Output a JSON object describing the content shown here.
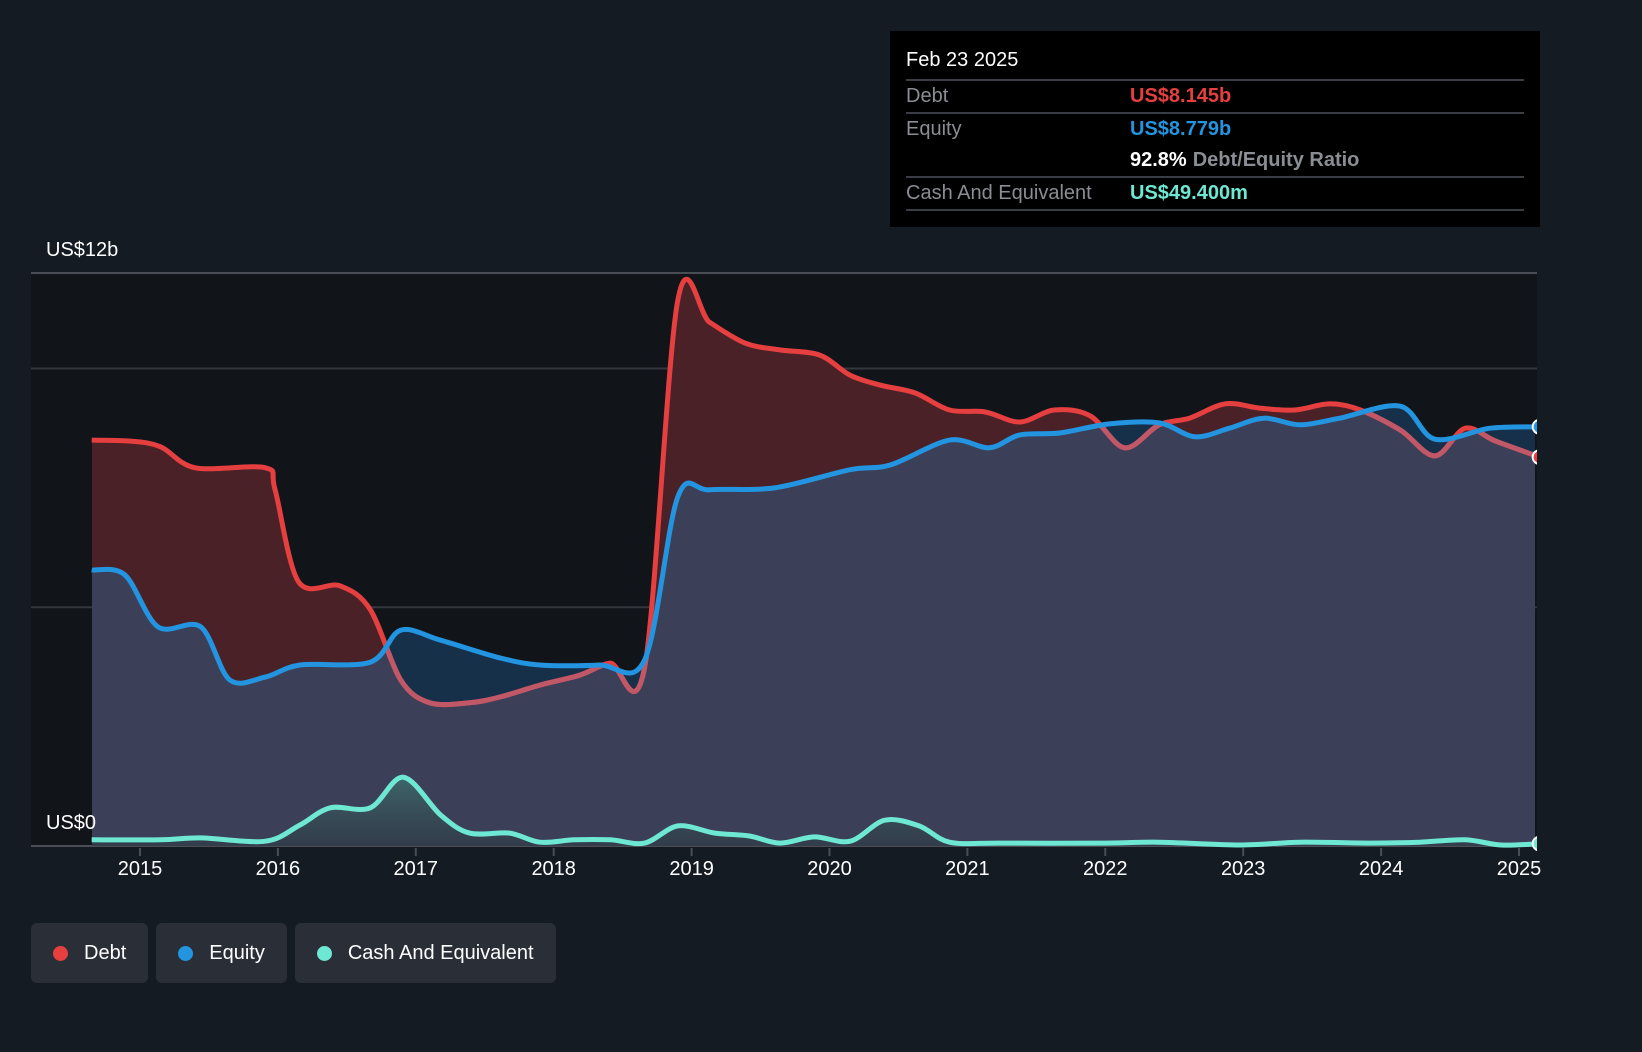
{
  "tooltip": {
    "date": "Feb 23 2025",
    "debt_label": "Debt",
    "debt_value": "US$8.145b",
    "equity_label": "Equity",
    "equity_value": "US$8.779b",
    "ratio_value": "92.8%",
    "ratio_label": "Debt/Equity Ratio",
    "cash_label": "Cash And Equivalent",
    "cash_value": "US$49.400m"
  },
  "colors": {
    "debt": "#e5403f",
    "equity": "#2394df",
    "cash": "#6ee7d3",
    "background": "#151b23"
  },
  "legend": [
    {
      "label": "Debt",
      "color": "#e5403f"
    },
    {
      "label": "Equity",
      "color": "#2394df"
    },
    {
      "label": "Cash And Equivalent",
      "color": "#6ee7d3"
    }
  ],
  "chart_data": {
    "type": "area",
    "title": "",
    "xlabel": "",
    "ylabel": "",
    "ylim": [
      0,
      12
    ],
    "xlim": [
      2014.65,
      2025.15
    ],
    "y_unit": "US$ billions",
    "y_tick_labels": [
      {
        "value": 12,
        "label": "US$12b"
      },
      {
        "value": 0,
        "label": "US$0"
      }
    ],
    "gridlines": [
      0,
      5,
      10,
      12
    ],
    "x_ticks": [
      2015,
      2016,
      2017,
      2018,
      2019,
      2020,
      2021,
      2022,
      2023,
      2024,
      2025
    ],
    "x_tick_labels": [
      "2015",
      "2016",
      "2017",
      "2018",
      "2019",
      "2020",
      "2021",
      "2022",
      "2023",
      "2024",
      "2025"
    ],
    "legend_position": "bottom-left",
    "series": [
      {
        "name": "Debt",
        "points": [
          [
            2014.65,
            8.5
          ],
          [
            2014.93,
            8.48
          ],
          [
            2015.15,
            8.36
          ],
          [
            2015.4,
            7.92
          ],
          [
            2015.91,
            7.92
          ],
          [
            2015.98,
            7.46
          ],
          [
            2016.15,
            5.53
          ],
          [
            2016.45,
            5.45
          ],
          [
            2016.67,
            4.95
          ],
          [
            2016.89,
            3.48
          ],
          [
            2017.1,
            3.0
          ],
          [
            2017.39,
            3.0
          ],
          [
            2017.61,
            3.12
          ],
          [
            2017.9,
            3.37
          ],
          [
            2018.19,
            3.58
          ],
          [
            2018.41,
            3.83
          ],
          [
            2018.66,
            3.75
          ],
          [
            2018.9,
            11.43
          ],
          [
            2019.13,
            10.97
          ],
          [
            2019.39,
            10.53
          ],
          [
            2019.64,
            10.39
          ],
          [
            2019.93,
            10.28
          ],
          [
            2020.15,
            9.86
          ],
          [
            2020.37,
            9.65
          ],
          [
            2020.62,
            9.49
          ],
          [
            2020.87,
            9.13
          ],
          [
            2021.13,
            9.09
          ],
          [
            2021.38,
            8.88
          ],
          [
            2021.63,
            9.13
          ],
          [
            2021.89,
            9.01
          ],
          [
            2022.14,
            8.34
          ],
          [
            2022.39,
            8.82
          ],
          [
            2022.61,
            8.96
          ],
          [
            2022.87,
            9.26
          ],
          [
            2023.12,
            9.17
          ],
          [
            2023.37,
            9.13
          ],
          [
            2023.63,
            9.26
          ],
          [
            2023.85,
            9.13
          ],
          [
            2024.14,
            8.71
          ],
          [
            2024.39,
            8.17
          ],
          [
            2024.61,
            8.75
          ],
          [
            2024.83,
            8.48
          ],
          [
            2025.15,
            8.145
          ]
        ]
      },
      {
        "name": "Equity",
        "points": [
          [
            2014.65,
            5.78
          ],
          [
            2014.89,
            5.68
          ],
          [
            2015.13,
            4.59
          ],
          [
            2015.44,
            4.59
          ],
          [
            2015.65,
            3.48
          ],
          [
            2015.91,
            3.54
          ],
          [
            2016.16,
            3.79
          ],
          [
            2016.67,
            3.85
          ],
          [
            2016.89,
            4.52
          ],
          [
            2017.18,
            4.31
          ],
          [
            2017.61,
            3.94
          ],
          [
            2017.9,
            3.79
          ],
          [
            2018.33,
            3.79
          ],
          [
            2018.66,
            3.9
          ],
          [
            2018.9,
            7.31
          ],
          [
            2019.13,
            7.46
          ],
          [
            2019.6,
            7.5
          ],
          [
            2020.15,
            7.88
          ],
          [
            2020.44,
            7.98
          ],
          [
            2020.87,
            8.5
          ],
          [
            2021.16,
            8.34
          ],
          [
            2021.38,
            8.61
          ],
          [
            2021.67,
            8.65
          ],
          [
            2022.03,
            8.84
          ],
          [
            2022.39,
            8.86
          ],
          [
            2022.65,
            8.57
          ],
          [
            2022.9,
            8.75
          ],
          [
            2023.15,
            8.96
          ],
          [
            2023.41,
            8.82
          ],
          [
            2023.7,
            8.96
          ],
          [
            2024.14,
            9.21
          ],
          [
            2024.39,
            8.52
          ],
          [
            2024.79,
            8.75
          ],
          [
            2025.15,
            8.779
          ]
        ]
      },
      {
        "name": "Cash And Equivalent",
        "points": [
          [
            2014.65,
            0.13
          ],
          [
            2015.15,
            0.13
          ],
          [
            2015.44,
            0.17
          ],
          [
            2015.91,
            0.1
          ],
          [
            2016.16,
            0.44
          ],
          [
            2016.38,
            0.8
          ],
          [
            2016.67,
            0.8
          ],
          [
            2016.91,
            1.44
          ],
          [
            2017.18,
            0.65
          ],
          [
            2017.39,
            0.27
          ],
          [
            2017.68,
            0.27
          ],
          [
            2017.9,
            0.08
          ],
          [
            2018.15,
            0.13
          ],
          [
            2018.41,
            0.13
          ],
          [
            2018.66,
            0.06
          ],
          [
            2018.9,
            0.42
          ],
          [
            2019.17,
            0.27
          ],
          [
            2019.42,
            0.21
          ],
          [
            2019.64,
            0.06
          ],
          [
            2019.89,
            0.19
          ],
          [
            2020.15,
            0.1
          ],
          [
            2020.4,
            0.54
          ],
          [
            2020.65,
            0.42
          ],
          [
            2020.87,
            0.08
          ],
          [
            2021.23,
            0.06
          ],
          [
            2021.96,
            0.06
          ],
          [
            2022.39,
            0.08
          ],
          [
            2022.97,
            0.02
          ],
          [
            2023.41,
            0.08
          ],
          [
            2023.92,
            0.06
          ],
          [
            2024.28,
            0.08
          ],
          [
            2024.61,
            0.13
          ],
          [
            2024.87,
            0.02
          ],
          [
            2025.15,
            0.0494
          ]
        ]
      }
    ]
  }
}
